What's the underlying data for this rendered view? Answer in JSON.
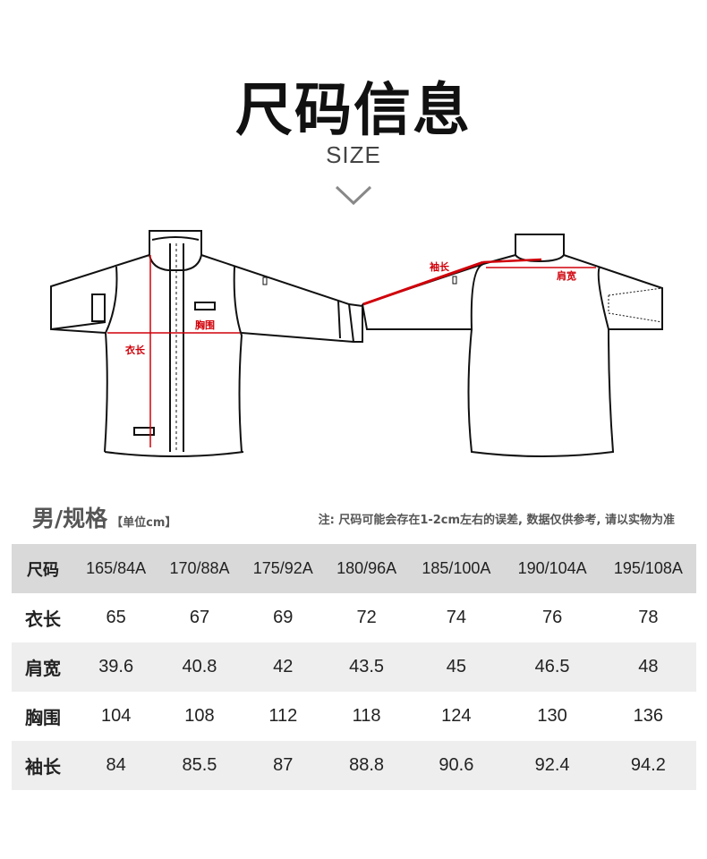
{
  "title": "尺码信息",
  "subtitle": "SIZE",
  "diagram_labels": {
    "length": "衣长",
    "chest": "胸围",
    "sleeve": "袖长",
    "shoulder": "肩宽"
  },
  "section": {
    "title": "男/规格",
    "unit": "【单位cm】",
    "note": "注: 尺码可能会存在1-2cm左右的误差, 数据仅供参考, 请以实物为准"
  },
  "colors": {
    "measure": "#d0000a",
    "header_bg": "#d9d9d9",
    "alt_row_bg": "#eeeeee"
  },
  "table": {
    "header": [
      "尺码",
      "165/84A",
      "170/88A",
      "175/92A",
      "180/96A",
      "185/100A",
      "190/104A",
      "195/108A"
    ],
    "rows": [
      [
        "衣长",
        "65",
        "67",
        "69",
        "72",
        "74",
        "76",
        "78"
      ],
      [
        "肩宽",
        "39.6",
        "40.8",
        "42",
        "43.5",
        "45",
        "46.5",
        "48"
      ],
      [
        "胸围",
        "104",
        "108",
        "112",
        "118",
        "124",
        "130",
        "136"
      ],
      [
        "袖长",
        "84",
        "85.5",
        "87",
        "88.8",
        "90.6",
        "92.4",
        "94.2"
      ]
    ]
  }
}
